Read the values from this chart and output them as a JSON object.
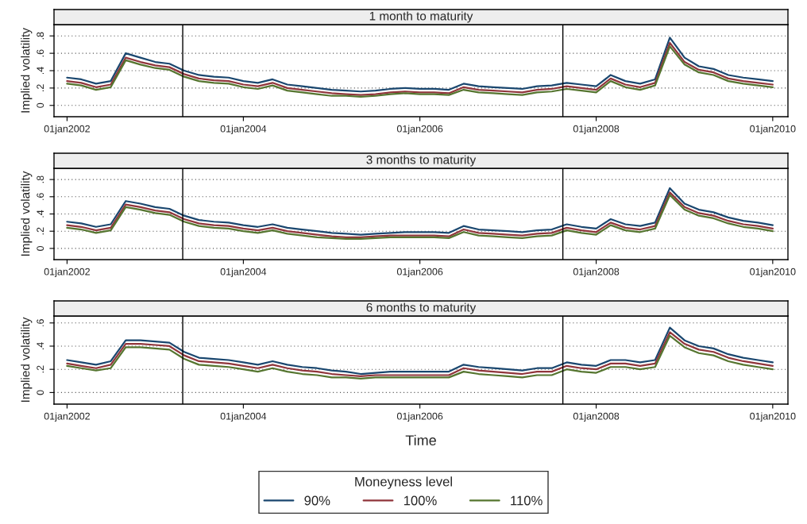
{
  "chart_data": [
    {
      "type": "line",
      "title": "1 month to maturity",
      "ylabel": "Implied volatility",
      "legend_title": "Moneyness level",
      "legend": "bottom",
      "x": [
        "2002-01",
        "2002-03",
        "2002-05",
        "2002-07",
        "2002-09",
        "2002-11",
        "2003-01",
        "2003-03",
        "2003-05",
        "2003-07",
        "2003-09",
        "2003-11",
        "2004-01",
        "2004-03",
        "2004-05",
        "2004-07",
        "2004-09",
        "2004-11",
        "2005-01",
        "2005-03",
        "2005-05",
        "2005-07",
        "2005-09",
        "2005-11",
        "2006-01",
        "2006-03",
        "2006-05",
        "2006-07",
        "2006-09",
        "2006-11",
        "2007-01",
        "2007-03",
        "2007-05",
        "2007-07",
        "2007-09",
        "2007-11",
        "2008-01",
        "2008-03",
        "2008-05",
        "2008-07",
        "2008-09",
        "2008-11",
        "2009-01",
        "2009-03",
        "2009-05",
        "2009-07",
        "2009-09",
        "2009-11",
        "2010-01"
      ],
      "series": [
        {
          "name": "90%",
          "color": "#1a476f",
          "values": [
            0.32,
            0.3,
            0.25,
            0.28,
            0.6,
            0.55,
            0.5,
            0.48,
            0.4,
            0.35,
            0.33,
            0.32,
            0.28,
            0.26,
            0.3,
            0.24,
            0.22,
            0.2,
            0.18,
            0.17,
            0.16,
            0.17,
            0.19,
            0.2,
            0.19,
            0.19,
            0.18,
            0.25,
            0.22,
            0.21,
            0.2,
            0.19,
            0.22,
            0.23,
            0.26,
            0.24,
            0.22,
            0.35,
            0.28,
            0.25,
            0.3,
            0.78,
            0.55,
            0.45,
            0.42,
            0.35,
            0.32,
            0.3,
            0.28
          ]
        },
        {
          "name": "100%",
          "color": "#90353b",
          "values": [
            0.28,
            0.26,
            0.21,
            0.24,
            0.55,
            0.5,
            0.46,
            0.44,
            0.36,
            0.31,
            0.29,
            0.28,
            0.24,
            0.22,
            0.26,
            0.2,
            0.18,
            0.16,
            0.14,
            0.13,
            0.12,
            0.13,
            0.15,
            0.16,
            0.15,
            0.15,
            0.14,
            0.21,
            0.18,
            0.17,
            0.16,
            0.15,
            0.18,
            0.19,
            0.22,
            0.2,
            0.18,
            0.31,
            0.24,
            0.21,
            0.26,
            0.72,
            0.5,
            0.41,
            0.38,
            0.31,
            0.28,
            0.26,
            0.24
          ]
        },
        {
          "name": "110%",
          "color": "#55752f",
          "values": [
            0.25,
            0.23,
            0.18,
            0.21,
            0.52,
            0.47,
            0.43,
            0.41,
            0.33,
            0.28,
            0.26,
            0.25,
            0.21,
            0.19,
            0.23,
            0.17,
            0.15,
            0.13,
            0.11,
            0.11,
            0.1,
            0.11,
            0.13,
            0.14,
            0.13,
            0.13,
            0.12,
            0.18,
            0.15,
            0.14,
            0.13,
            0.12,
            0.15,
            0.16,
            0.19,
            0.17,
            0.15,
            0.28,
            0.21,
            0.18,
            0.23,
            0.68,
            0.47,
            0.38,
            0.35,
            0.28,
            0.25,
            0.23,
            0.21
          ]
        }
      ],
      "xlim": [
        "2001-11-08",
        "2010-03-05"
      ],
      "xticks": [
        {
          "value": "2002-01-01",
          "label": "01jan2002"
        },
        {
          "value": "2004-01-01",
          "label": "01jan2004"
        },
        {
          "value": "2006-01-01",
          "label": "01jan2006"
        },
        {
          "value": "2008-01-01",
          "label": "01jan2008"
        },
        {
          "value": "2010-01-01",
          "label": "01jan2010"
        }
      ],
      "ylim": [
        -0.13,
        0.93
      ],
      "yticks": [
        0,
        {
          "value": 0.2,
          "label": ".2"
        },
        {
          "value": 0.4,
          "label": ".4"
        },
        {
          "value": 0.6,
          "label": ".6"
        },
        {
          "value": 0.8,
          "label": ".8"
        }
      ],
      "ref_lines": [
        {
          "axis": "x",
          "value": "2003-04-25",
          "color": "#000000"
        },
        {
          "axis": "x",
          "value": "2007-08-16",
          "color": "#000000"
        }
      ],
      "grid": "y",
      "line_style": "solid",
      "marker": "none"
    },
    {
      "type": "line",
      "title": "3 months to maturity",
      "ylabel": "Implied volatility",
      "x": [
        "2002-01",
        "2002-03",
        "2002-05",
        "2002-07",
        "2002-09",
        "2002-11",
        "2003-01",
        "2003-03",
        "2003-05",
        "2003-07",
        "2003-09",
        "2003-11",
        "2004-01",
        "2004-03",
        "2004-05",
        "2004-07",
        "2004-09",
        "2004-11",
        "2005-01",
        "2005-03",
        "2005-05",
        "2005-07",
        "2005-09",
        "2005-11",
        "2006-01",
        "2006-03",
        "2006-05",
        "2006-07",
        "2006-09",
        "2006-11",
        "2007-01",
        "2007-03",
        "2007-05",
        "2007-07",
        "2007-09",
        "2007-11",
        "2008-01",
        "2008-03",
        "2008-05",
        "2008-07",
        "2008-09",
        "2008-11",
        "2009-01",
        "2009-03",
        "2009-05",
        "2009-07",
        "2009-09",
        "2009-11",
        "2010-01"
      ],
      "series": [
        {
          "color": "#1a476f",
          "values": [
            0.31,
            0.29,
            0.25,
            0.28,
            0.55,
            0.52,
            0.48,
            0.46,
            0.38,
            0.33,
            0.31,
            0.3,
            0.27,
            0.25,
            0.28,
            0.24,
            0.22,
            0.2,
            0.18,
            0.17,
            0.16,
            0.17,
            0.18,
            0.19,
            0.19,
            0.19,
            0.18,
            0.26,
            0.22,
            0.21,
            0.2,
            0.19,
            0.21,
            0.22,
            0.28,
            0.25,
            0.23,
            0.34,
            0.28,
            0.26,
            0.3,
            0.7,
            0.52,
            0.45,
            0.42,
            0.36,
            0.32,
            0.3,
            0.27
          ]
        },
        {
          "color": "#90353b",
          "values": [
            0.27,
            0.25,
            0.21,
            0.24,
            0.51,
            0.48,
            0.44,
            0.42,
            0.34,
            0.29,
            0.27,
            0.26,
            0.23,
            0.21,
            0.24,
            0.2,
            0.18,
            0.16,
            0.14,
            0.13,
            0.13,
            0.14,
            0.15,
            0.15,
            0.15,
            0.15,
            0.14,
            0.22,
            0.18,
            0.17,
            0.16,
            0.15,
            0.17,
            0.18,
            0.24,
            0.21,
            0.19,
            0.3,
            0.24,
            0.22,
            0.26,
            0.65,
            0.48,
            0.41,
            0.38,
            0.32,
            0.28,
            0.26,
            0.23
          ]
        },
        {
          "color": "#55752f",
          "values": [
            0.24,
            0.22,
            0.18,
            0.21,
            0.48,
            0.45,
            0.41,
            0.39,
            0.31,
            0.26,
            0.24,
            0.23,
            0.2,
            0.18,
            0.21,
            0.17,
            0.15,
            0.13,
            0.12,
            0.11,
            0.11,
            0.12,
            0.13,
            0.13,
            0.13,
            0.13,
            0.12,
            0.19,
            0.15,
            0.14,
            0.13,
            0.12,
            0.14,
            0.15,
            0.21,
            0.18,
            0.16,
            0.27,
            0.21,
            0.19,
            0.23,
            0.62,
            0.45,
            0.38,
            0.35,
            0.29,
            0.25,
            0.23,
            0.2
          ]
        }
      ],
      "xlim": [
        "2001-11-08",
        "2010-03-05"
      ],
      "xticks": [
        {
          "value": "2002-01-01",
          "label": "01jan2002"
        },
        {
          "value": "2004-01-01",
          "label": "01jan2004"
        },
        {
          "value": "2006-01-01",
          "label": "01jan2006"
        },
        {
          "value": "2008-01-01",
          "label": "01jan2008"
        },
        {
          "value": "2010-01-01",
          "label": "01jan2010"
        }
      ],
      "ylim": [
        -0.13,
        0.93
      ],
      "yticks": [
        0,
        {
          "value": 0.2,
          "label": ".2"
        },
        {
          "value": 0.4,
          "label": ".4"
        },
        {
          "value": 0.6,
          "label": ".6"
        },
        {
          "value": 0.8,
          "label": ".8"
        }
      ],
      "ref_lines": [
        {
          "axis": "x",
          "value": "2003-04-25",
          "color": "#000000"
        },
        {
          "axis": "x",
          "value": "2007-08-16",
          "color": "#000000"
        }
      ],
      "grid": "y",
      "line_style": "solid",
      "marker": "none"
    },
    {
      "type": "line",
      "title": "6 months to maturity",
      "ylabel": "Implied volatility",
      "xlabel": "Time",
      "x": [
        "2002-01",
        "2002-03",
        "2002-05",
        "2002-07",
        "2002-09",
        "2002-11",
        "2003-01",
        "2003-03",
        "2003-05",
        "2003-07",
        "2003-09",
        "2003-11",
        "2004-01",
        "2004-03",
        "2004-05",
        "2004-07",
        "2004-09",
        "2004-11",
        "2005-01",
        "2005-03",
        "2005-05",
        "2005-07",
        "2005-09",
        "2005-11",
        "2006-01",
        "2006-03",
        "2006-05",
        "2006-07",
        "2006-09",
        "2006-11",
        "2007-01",
        "2007-03",
        "2007-05",
        "2007-07",
        "2007-09",
        "2007-11",
        "2008-01",
        "2008-03",
        "2008-05",
        "2008-07",
        "2008-09",
        "2008-11",
        "2009-01",
        "2009-03",
        "2009-05",
        "2009-07",
        "2009-09",
        "2009-11",
        "2010-01"
      ],
      "series": [
        {
          "color": "#1a476f",
          "values": [
            0.28,
            0.26,
            0.24,
            0.27,
            0.45,
            0.45,
            0.44,
            0.43,
            0.35,
            0.3,
            0.29,
            0.28,
            0.26,
            0.24,
            0.27,
            0.24,
            0.22,
            0.21,
            0.19,
            0.18,
            0.16,
            0.17,
            0.18,
            0.18,
            0.18,
            0.18,
            0.18,
            0.24,
            0.22,
            0.21,
            0.2,
            0.19,
            0.21,
            0.21,
            0.26,
            0.24,
            0.23,
            0.28,
            0.28,
            0.26,
            0.28,
            0.56,
            0.45,
            0.4,
            0.38,
            0.33,
            0.3,
            0.28,
            0.26
          ]
        },
        {
          "color": "#90353b",
          "values": [
            0.25,
            0.23,
            0.21,
            0.24,
            0.42,
            0.42,
            0.41,
            0.4,
            0.32,
            0.27,
            0.26,
            0.25,
            0.23,
            0.21,
            0.24,
            0.21,
            0.19,
            0.18,
            0.16,
            0.15,
            0.14,
            0.15,
            0.15,
            0.15,
            0.15,
            0.15,
            0.15,
            0.21,
            0.19,
            0.18,
            0.17,
            0.16,
            0.18,
            0.18,
            0.23,
            0.21,
            0.2,
            0.25,
            0.25,
            0.23,
            0.25,
            0.52,
            0.42,
            0.37,
            0.35,
            0.3,
            0.27,
            0.25,
            0.23
          ]
        },
        {
          "color": "#55752f",
          "values": [
            0.23,
            0.21,
            0.19,
            0.21,
            0.39,
            0.39,
            0.38,
            0.37,
            0.29,
            0.24,
            0.23,
            0.22,
            0.2,
            0.18,
            0.21,
            0.18,
            0.16,
            0.15,
            0.13,
            0.13,
            0.12,
            0.13,
            0.13,
            0.13,
            0.13,
            0.13,
            0.13,
            0.18,
            0.16,
            0.15,
            0.14,
            0.13,
            0.15,
            0.15,
            0.2,
            0.18,
            0.17,
            0.22,
            0.22,
            0.2,
            0.22,
            0.49,
            0.39,
            0.34,
            0.32,
            0.27,
            0.24,
            0.22,
            0.2
          ]
        }
      ],
      "xlim": [
        "2001-11-08",
        "2010-03-05"
      ],
      "xticks": [
        {
          "value": "2002-01-01",
          "label": "01jan2002"
        },
        {
          "value": "2004-01-01",
          "label": "01jan2004"
        },
        {
          "value": "2006-01-01",
          "label": "01jan2006"
        },
        {
          "value": "2008-01-01",
          "label": "01jan2008"
        },
        {
          "value": "2010-01-01",
          "label": "01jan2010"
        }
      ],
      "ylim": [
        -0.1,
        0.66
      ],
      "yticks": [
        0,
        {
          "value": 0.2,
          "label": ".2"
        },
        {
          "value": 0.4,
          "label": ".4"
        },
        {
          "value": 0.6,
          "label": ".6"
        }
      ],
      "ref_lines": [
        {
          "axis": "x",
          "value": "2003-04-25",
          "color": "#000000"
        },
        {
          "axis": "x",
          "value": "2007-08-16",
          "color": "#000000"
        }
      ],
      "grid": "y",
      "line_style": "solid",
      "marker": "none"
    }
  ]
}
